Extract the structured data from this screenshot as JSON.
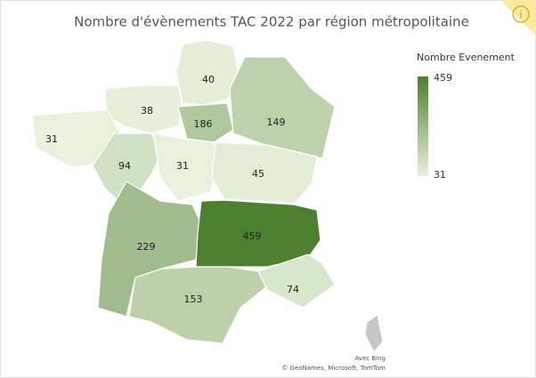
{
  "chart_data": {
    "type": "choropleth",
    "title": "Nombre d'évènements TAC 2022 par région métropolitaine",
    "values": [
      40,
      38,
      186,
      149,
      31,
      94,
      31,
      45,
      229,
      459,
      153,
      74,
      null
    ],
    "legend": {
      "title": "Nombre Evenement",
      "min": 31,
      "max": 459,
      "min_color": "#e8f1dc",
      "max_color": "#4c7f2e"
    },
    "missing_color": "#c6c6c6",
    "attribution": [
      "Avec Bing",
      "© GeoNames, Microsoft, TomTom"
    ]
  }
}
